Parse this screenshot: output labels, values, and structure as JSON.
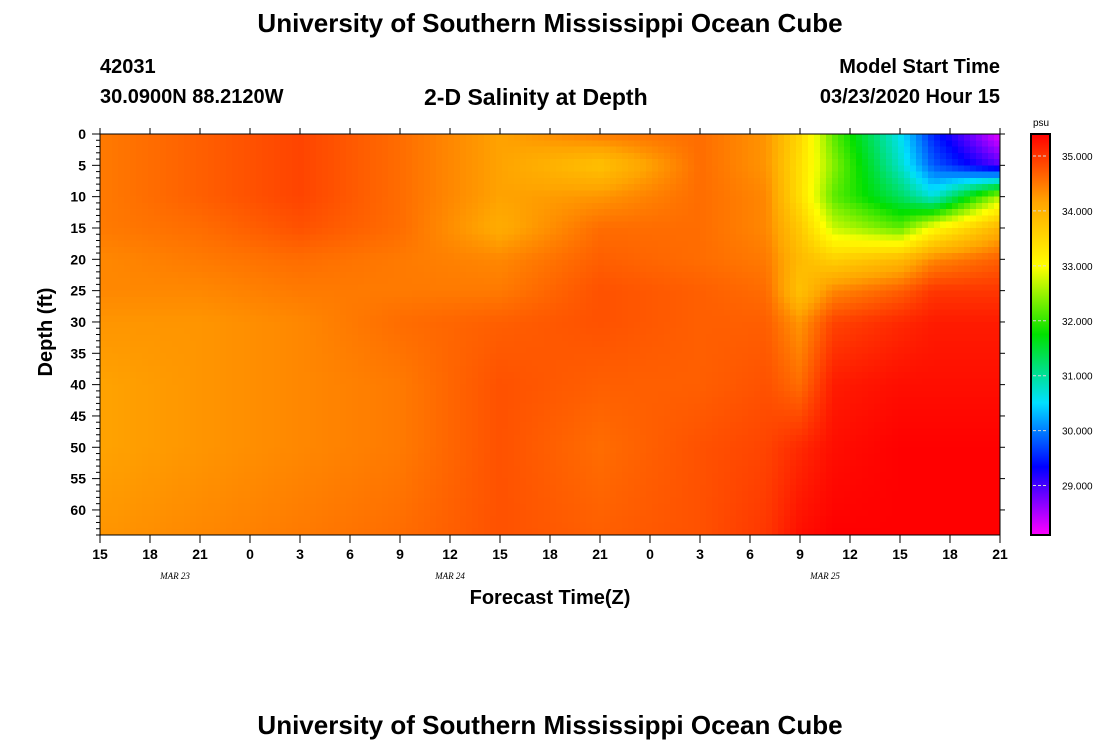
{
  "header": {
    "title_top": "University of Southern Mississippi Ocean Cube",
    "station_id": "42031",
    "coordinates": "30.0900N 88.2120W",
    "subtitle": "2-D Salinity at Depth",
    "model_start_label": "Model Start Time",
    "model_start_value": "03/23/2020 Hour 15",
    "title_bottom": "University of Southern Mississippi Ocean Cube"
  },
  "colors": {
    "background": "#ffffff",
    "axis": "#000000",
    "stops": [
      "#ff00ff",
      "#0000ff",
      "#00e0ff",
      "#00e000",
      "#ffff00",
      "#ffa500",
      "#ff0000"
    ]
  },
  "chart_data": {
    "type": "heatmap",
    "title": "2-D Salinity at Depth",
    "xlabel": "Forecast Time(Z)",
    "ylabel": "Depth (ft)",
    "x_tick_labels": [
      "15",
      "18",
      "21",
      "0",
      "3",
      "6",
      "9",
      "12",
      "15",
      "18",
      "21",
      "0",
      "3",
      "6",
      "9",
      "12",
      "15",
      "18",
      "21"
    ],
    "date_labels": [
      {
        "label": "MAR 23",
        "at_tick": 1.5
      },
      {
        "label": "MAR 24",
        "at_tick": 7
      },
      {
        "label": "MAR 25",
        "at_tick": 14.5
      }
    ],
    "y_tick_labels": [
      "0",
      "5",
      "10",
      "15",
      "20",
      "25",
      "30",
      "35",
      "40",
      "45",
      "50",
      "55",
      "60"
    ],
    "ylim": [
      0,
      64
    ],
    "x_hours_range": [
      0,
      54
    ],
    "colorbar": {
      "unit": "psu",
      "min": 28.1,
      "max": 35.4,
      "tick_labels": [
        "35.000",
        "34.000",
        "33.000",
        "32.000",
        "31.000",
        "30.000",
        "29.000"
      ],
      "tick_values": [
        35,
        34,
        33,
        32,
        31,
        30,
        29
      ]
    },
    "grid": {
      "x_hours_since_start": [
        0,
        6,
        12,
        18,
        24,
        30,
        36,
        40,
        42,
        44,
        48,
        50,
        54
      ],
      "depth_ft": [
        0,
        5,
        10,
        15,
        20,
        25,
        30,
        40,
        50,
        64
      ],
      "salinity_psu": [
        [
          34.5,
          34.7,
          34.9,
          34.6,
          34.2,
          34.5,
          34.6,
          34.3,
          33.5,
          32.2,
          30.6,
          29.5,
          28.2
        ],
        [
          34.5,
          34.7,
          34.9,
          34.6,
          34.2,
          33.8,
          34.6,
          34.3,
          33.4,
          32.4,
          30.8,
          29.8,
          28.9
        ],
        [
          34.5,
          34.7,
          34.9,
          34.6,
          34.2,
          34.3,
          34.6,
          34.4,
          33.4,
          32.2,
          31.3,
          30.7,
          32.6
        ],
        [
          34.5,
          34.6,
          34.8,
          34.6,
          34.1,
          34.6,
          34.6,
          34.4,
          33.7,
          32.7,
          32.2,
          33.0,
          34.0
        ],
        [
          34.4,
          34.5,
          34.6,
          34.5,
          34.4,
          34.7,
          34.6,
          34.5,
          33.9,
          33.6,
          33.9,
          34.4,
          34.7
        ],
        [
          34.4,
          34.4,
          34.5,
          34.5,
          34.5,
          34.8,
          34.7,
          34.6,
          33.8,
          34.4,
          34.7,
          35.0,
          35.0
        ],
        [
          34.3,
          34.3,
          34.4,
          34.6,
          34.7,
          34.8,
          34.7,
          34.7,
          34.3,
          34.9,
          35.1,
          35.2,
          35.2
        ],
        [
          34.2,
          34.3,
          34.4,
          34.5,
          34.8,
          34.7,
          34.7,
          34.8,
          34.6,
          35.2,
          35.3,
          35.3,
          35.3
        ],
        [
          34.2,
          34.3,
          34.4,
          34.5,
          34.8,
          34.6,
          34.8,
          34.9,
          35.1,
          35.3,
          35.4,
          35.4,
          35.4
        ],
        [
          34.3,
          34.4,
          34.5,
          34.6,
          34.8,
          34.7,
          34.8,
          35.0,
          35.3,
          35.4,
          35.4,
          35.4,
          35.4
        ]
      ]
    }
  }
}
